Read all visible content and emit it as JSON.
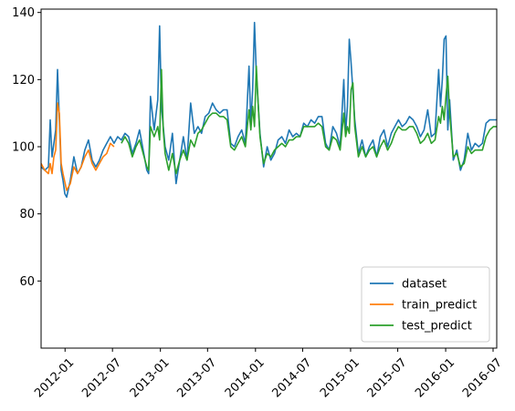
{
  "chart_data": {
    "type": "line",
    "title": "",
    "xlabel": "",
    "ylabel": "",
    "x_axis": {
      "kind": "date",
      "min": "2011-10-01",
      "max": "2016-07-15",
      "ticks": [
        "2012-01",
        "2012-07",
        "2013-01",
        "2013-07",
        "2014-01",
        "2014-07",
        "2015-01",
        "2015-07",
        "2016-01",
        "2016-07"
      ]
    },
    "y_axis": {
      "min": 40,
      "max": 141,
      "ticks": [
        60,
        80,
        100,
        120,
        140
      ]
    },
    "grid": false,
    "legend_position": "bottom-right",
    "series": [
      {
        "name": "dataset",
        "color": "#1f77b4",
        "points": [
          [
            "2011-10-01",
            94
          ],
          [
            "2011-10-15",
            93
          ],
          [
            "2011-10-29",
            94
          ],
          [
            "2011-11-05",
            108
          ],
          [
            "2011-11-12",
            97
          ],
          [
            "2011-11-26",
            105
          ],
          [
            "2011-12-03",
            123
          ],
          [
            "2011-12-10",
            108
          ],
          [
            "2011-12-17",
            93
          ],
          [
            "2011-12-24",
            90
          ],
          [
            "2011-12-31",
            86
          ],
          [
            "2012-01-07",
            85
          ],
          [
            "2012-01-21",
            90
          ],
          [
            "2012-02-04",
            97
          ],
          [
            "2012-02-18",
            92
          ],
          [
            "2012-03-03",
            94
          ],
          [
            "2012-03-17",
            99
          ],
          [
            "2012-03-31",
            102
          ],
          [
            "2012-04-14",
            96
          ],
          [
            "2012-04-28",
            94
          ],
          [
            "2012-05-12",
            96
          ],
          [
            "2012-05-26",
            99
          ],
          [
            "2012-06-09",
            101
          ],
          [
            "2012-06-23",
            103
          ],
          [
            "2012-07-07",
            101
          ],
          [
            "2012-07-21",
            103
          ],
          [
            "2012-08-04",
            102
          ],
          [
            "2012-08-18",
            104
          ],
          [
            "2012-09-01",
            103
          ],
          [
            "2012-09-15",
            98
          ],
          [
            "2012-09-29",
            101
          ],
          [
            "2012-10-13",
            105
          ],
          [
            "2012-10-27",
            99
          ],
          [
            "2012-11-10",
            93
          ],
          [
            "2012-11-17",
            92
          ],
          [
            "2012-11-24",
            115
          ],
          [
            "2012-12-08",
            105
          ],
          [
            "2012-12-22",
            114
          ],
          [
            "2012-12-29",
            136
          ],
          [
            "2013-01-05",
            112
          ],
          [
            "2013-01-19",
            100
          ],
          [
            "2013-02-02",
            96
          ],
          [
            "2013-02-16",
            104
          ],
          [
            "2013-03-02",
            89
          ],
          [
            "2013-03-16",
            96
          ],
          [
            "2013-03-30",
            103
          ],
          [
            "2013-04-13",
            96
          ],
          [
            "2013-04-27",
            113
          ],
          [
            "2013-05-11",
            104
          ],
          [
            "2013-05-25",
            106
          ],
          [
            "2013-06-08",
            104
          ],
          [
            "2013-06-22",
            109
          ],
          [
            "2013-07-06",
            110
          ],
          [
            "2013-07-20",
            113
          ],
          [
            "2013-08-03",
            111
          ],
          [
            "2013-08-17",
            110
          ],
          [
            "2013-08-31",
            111
          ],
          [
            "2013-09-14",
            111
          ],
          [
            "2013-09-28",
            101
          ],
          [
            "2013-10-12",
            100
          ],
          [
            "2013-10-26",
            103
          ],
          [
            "2013-11-09",
            105
          ],
          [
            "2013-11-23",
            101
          ],
          [
            "2013-12-07",
            124
          ],
          [
            "2013-12-14",
            107
          ],
          [
            "2013-12-21",
            117
          ],
          [
            "2013-12-28",
            137
          ],
          [
            "2014-01-04",
            122
          ],
          [
            "2014-01-18",
            104
          ],
          [
            "2014-02-01",
            94
          ],
          [
            "2014-02-15",
            100
          ],
          [
            "2014-03-01",
            96
          ],
          [
            "2014-03-15",
            98
          ],
          [
            "2014-03-29",
            102
          ],
          [
            "2014-04-12",
            103
          ],
          [
            "2014-04-26",
            101
          ],
          [
            "2014-05-10",
            105
          ],
          [
            "2014-05-24",
            103
          ],
          [
            "2014-06-07",
            104
          ],
          [
            "2014-06-21",
            103
          ],
          [
            "2014-07-05",
            107
          ],
          [
            "2014-07-19",
            106
          ],
          [
            "2014-08-02",
            108
          ],
          [
            "2014-08-16",
            107
          ],
          [
            "2014-08-30",
            109
          ],
          [
            "2014-09-13",
            109
          ],
          [
            "2014-09-27",
            101
          ],
          [
            "2014-10-11",
            99
          ],
          [
            "2014-10-25",
            106
          ],
          [
            "2014-11-08",
            104
          ],
          [
            "2014-11-22",
            100
          ],
          [
            "2014-12-06",
            120
          ],
          [
            "2014-12-13",
            104
          ],
          [
            "2014-12-20",
            112
          ],
          [
            "2014-12-27",
            132
          ],
          [
            "2015-01-03",
            125
          ],
          [
            "2015-01-17",
            108
          ],
          [
            "2015-01-31",
            98
          ],
          [
            "2015-02-14",
            102
          ],
          [
            "2015-02-28",
            97
          ],
          [
            "2015-03-14",
            100
          ],
          [
            "2015-03-28",
            102
          ],
          [
            "2015-04-11",
            97
          ],
          [
            "2015-04-25",
            103
          ],
          [
            "2015-05-09",
            105
          ],
          [
            "2015-05-23",
            100
          ],
          [
            "2015-06-06",
            104
          ],
          [
            "2015-06-20",
            106
          ],
          [
            "2015-07-04",
            108
          ],
          [
            "2015-07-18",
            106
          ],
          [
            "2015-08-01",
            107
          ],
          [
            "2015-08-15",
            109
          ],
          [
            "2015-08-29",
            108
          ],
          [
            "2015-09-12",
            106
          ],
          [
            "2015-09-26",
            103
          ],
          [
            "2015-10-10",
            105
          ],
          [
            "2015-10-24",
            111
          ],
          [
            "2015-11-07",
            103
          ],
          [
            "2015-11-21",
            104
          ],
          [
            "2015-12-05",
            123
          ],
          [
            "2015-12-12",
            112
          ],
          [
            "2015-12-19",
            120
          ],
          [
            "2015-12-26",
            132
          ],
          [
            "2016-01-02",
            133
          ],
          [
            "2016-01-09",
            105
          ],
          [
            "2016-01-16",
            114
          ],
          [
            "2016-01-30",
            96
          ],
          [
            "2016-02-13",
            99
          ],
          [
            "2016-02-27",
            93
          ],
          [
            "2016-03-12",
            96
          ],
          [
            "2016-03-26",
            104
          ],
          [
            "2016-04-09",
            99
          ],
          [
            "2016-04-23",
            101
          ],
          [
            "2016-05-07",
            100
          ],
          [
            "2016-05-21",
            101
          ],
          [
            "2016-06-04",
            107
          ],
          [
            "2016-06-18",
            108
          ],
          [
            "2016-07-02",
            108
          ],
          [
            "2016-07-15",
            108
          ]
        ]
      },
      {
        "name": "train_predict",
        "color": "#ff7f0e",
        "points": [
          [
            "2011-10-01",
            95
          ],
          [
            "2011-10-15",
            93
          ],
          [
            "2011-10-29",
            92
          ],
          [
            "2011-11-05",
            95
          ],
          [
            "2011-11-12",
            92
          ],
          [
            "2011-11-19",
            97
          ],
          [
            "2011-11-26",
            99
          ],
          [
            "2011-12-03",
            113
          ],
          [
            "2011-12-10",
            110
          ],
          [
            "2011-12-17",
            95
          ],
          [
            "2011-12-24",
            92
          ],
          [
            "2012-01-07",
            87
          ],
          [
            "2012-01-21",
            89
          ],
          [
            "2012-02-04",
            94
          ],
          [
            "2012-02-18",
            92
          ],
          [
            "2012-03-03",
            94
          ],
          [
            "2012-03-17",
            97
          ],
          [
            "2012-03-31",
            99
          ],
          [
            "2012-04-14",
            95
          ],
          [
            "2012-04-28",
            93
          ],
          [
            "2012-05-12",
            95
          ],
          [
            "2012-05-26",
            97
          ],
          [
            "2012-06-09",
            98
          ],
          [
            "2012-06-23",
            101
          ],
          [
            "2012-07-07",
            100
          ]
        ]
      },
      {
        "name": "test_predict",
        "color": "#2ca02c",
        "points": [
          [
            "2012-08-04",
            101
          ],
          [
            "2012-08-18",
            103
          ],
          [
            "2012-09-01",
            101
          ],
          [
            "2012-09-15",
            97
          ],
          [
            "2012-09-29",
            100
          ],
          [
            "2012-10-13",
            102
          ],
          [
            "2012-10-27",
            98
          ],
          [
            "2012-11-10",
            94
          ],
          [
            "2012-11-17",
            93
          ],
          [
            "2012-11-24",
            106
          ],
          [
            "2012-12-08",
            103
          ],
          [
            "2012-12-22",
            106
          ],
          [
            "2012-12-29",
            102
          ],
          [
            "2013-01-05",
            123
          ],
          [
            "2013-01-12",
            105
          ],
          [
            "2013-01-19",
            98
          ],
          [
            "2013-02-02",
            93
          ],
          [
            "2013-02-16",
            98
          ],
          [
            "2013-03-02",
            92
          ],
          [
            "2013-03-16",
            96
          ],
          [
            "2013-03-30",
            99
          ],
          [
            "2013-04-13",
            96
          ],
          [
            "2013-04-27",
            102
          ],
          [
            "2013-05-11",
            100
          ],
          [
            "2013-05-25",
            104
          ],
          [
            "2013-06-08",
            105
          ],
          [
            "2013-06-22",
            107
          ],
          [
            "2013-07-06",
            109
          ],
          [
            "2013-07-20",
            110
          ],
          [
            "2013-08-03",
            110
          ],
          [
            "2013-08-17",
            109
          ],
          [
            "2013-08-31",
            109
          ],
          [
            "2013-09-14",
            108
          ],
          [
            "2013-09-28",
            100
          ],
          [
            "2013-10-12",
            99
          ],
          [
            "2013-10-26",
            101
          ],
          [
            "2013-11-09",
            103
          ],
          [
            "2013-11-23",
            100
          ],
          [
            "2013-12-07",
            111
          ],
          [
            "2013-12-14",
            105
          ],
          [
            "2013-12-21",
            112
          ],
          [
            "2013-12-28",
            106
          ],
          [
            "2014-01-04",
            124
          ],
          [
            "2014-01-11",
            113
          ],
          [
            "2014-01-18",
            103
          ],
          [
            "2014-02-01",
            95
          ],
          [
            "2014-02-15",
            98
          ],
          [
            "2014-03-01",
            97
          ],
          [
            "2014-03-15",
            99
          ],
          [
            "2014-03-29",
            100
          ],
          [
            "2014-04-12",
            101
          ],
          [
            "2014-04-26",
            100
          ],
          [
            "2014-05-10",
            102
          ],
          [
            "2014-05-24",
            102
          ],
          [
            "2014-06-07",
            103
          ],
          [
            "2014-06-21",
            103
          ],
          [
            "2014-07-05",
            106
          ],
          [
            "2014-07-19",
            106
          ],
          [
            "2014-08-02",
            106
          ],
          [
            "2014-08-16",
            106
          ],
          [
            "2014-08-30",
            107
          ],
          [
            "2014-09-13",
            106
          ],
          [
            "2014-09-27",
            100
          ],
          [
            "2014-10-11",
            99
          ],
          [
            "2014-10-25",
            103
          ],
          [
            "2014-11-08",
            102
          ],
          [
            "2014-11-22",
            99
          ],
          [
            "2014-12-06",
            110
          ],
          [
            "2014-12-13",
            103
          ],
          [
            "2014-12-20",
            106
          ],
          [
            "2014-12-27",
            104
          ],
          [
            "2015-01-03",
            117
          ],
          [
            "2015-01-10",
            119
          ],
          [
            "2015-01-17",
            106
          ],
          [
            "2015-01-31",
            97
          ],
          [
            "2015-02-14",
            100
          ],
          [
            "2015-02-28",
            97
          ],
          [
            "2015-03-14",
            99
          ],
          [
            "2015-03-28",
            100
          ],
          [
            "2015-04-11",
            97
          ],
          [
            "2015-04-25",
            100
          ],
          [
            "2015-05-09",
            102
          ],
          [
            "2015-05-23",
            99
          ],
          [
            "2015-06-06",
            101
          ],
          [
            "2015-06-20",
            104
          ],
          [
            "2015-07-04",
            106
          ],
          [
            "2015-07-18",
            105
          ],
          [
            "2015-08-01",
            105
          ],
          [
            "2015-08-15",
            106
          ],
          [
            "2015-08-29",
            106
          ],
          [
            "2015-09-12",
            104
          ],
          [
            "2015-09-26",
            101
          ],
          [
            "2015-10-10",
            102
          ],
          [
            "2015-10-24",
            104
          ],
          [
            "2015-11-07",
            101
          ],
          [
            "2015-11-21",
            102
          ],
          [
            "2015-12-05",
            109
          ],
          [
            "2015-12-12",
            107
          ],
          [
            "2015-12-19",
            112
          ],
          [
            "2015-12-26",
            108
          ],
          [
            "2016-01-02",
            115
          ],
          [
            "2016-01-09",
            121
          ],
          [
            "2016-01-16",
            110
          ],
          [
            "2016-01-30",
            97
          ],
          [
            "2016-02-13",
            98
          ],
          [
            "2016-02-27",
            94
          ],
          [
            "2016-03-12",
            95
          ],
          [
            "2016-03-26",
            100
          ],
          [
            "2016-04-09",
            98
          ],
          [
            "2016-04-23",
            99
          ],
          [
            "2016-05-07",
            99
          ],
          [
            "2016-05-21",
            99
          ],
          [
            "2016-06-04",
            103
          ],
          [
            "2016-06-18",
            105
          ],
          [
            "2016-07-02",
            106
          ],
          [
            "2016-07-15",
            106
          ]
        ]
      }
    ]
  }
}
